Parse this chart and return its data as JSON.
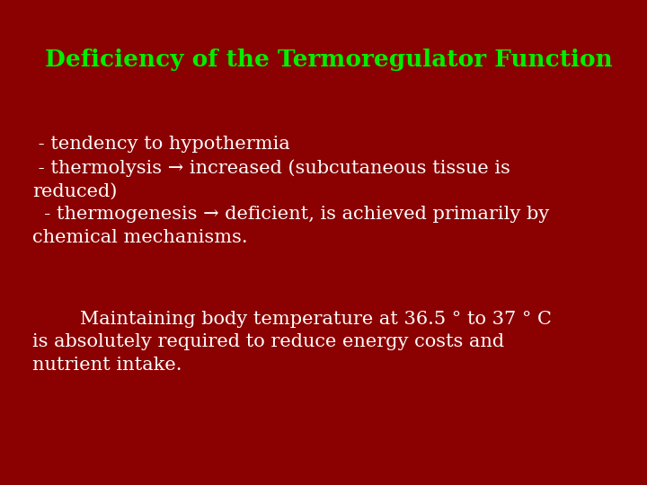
{
  "title": "Deficiency of the Termoregulator Function",
  "title_color": "#00ee00",
  "title_fontsize": 19,
  "background_color": "#8B0000",
  "body_text": " - tendency to hypothermia\n - thermolysis → increased (subcutaneous tissue is\nreduced)\n  - thermogenesis → deficient, is achieved primarily by\nchemical mechanisms.",
  "body_color": "#ffffff",
  "body_fontsize": 15,
  "paragraph2": "        Maintaining body temperature at 36.5 ° to 37 ° C\nis absolutely required to reduce energy costs and\nnutrient intake.",
  "para2_color": "#ffffff",
  "para2_fontsize": 15
}
